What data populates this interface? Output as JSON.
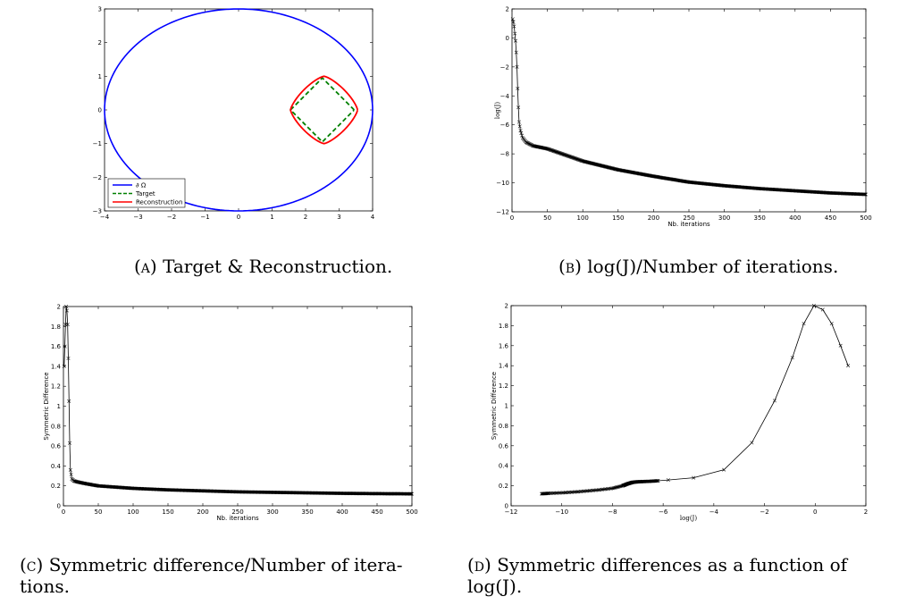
{
  "captions": {
    "a": {
      "letter": "(a)",
      "text": "Target & Reconstruction."
    },
    "b": {
      "letter": "(b)",
      "text": "log(J)/Number of iterations."
    },
    "c": {
      "letter": "(c)",
      "text": "Symmetric difference/Number of itera-",
      "text2": "tions."
    },
    "d": {
      "letter": "(d)",
      "text": "Symmetric differences as a function of",
      "text2": "log(J)."
    }
  },
  "chart_data": [
    {
      "id": "a",
      "type": "line",
      "title": "",
      "xlim": [
        -4,
        4
      ],
      "ylim": [
        -3,
        3
      ],
      "xticks": [
        -4,
        -3,
        -2,
        -1,
        0,
        1,
        2,
        3,
        4
      ],
      "yticks": [
        -3,
        -2,
        -1,
        0,
        1,
        2,
        3
      ],
      "xlabel": "",
      "ylabel": "",
      "legend": {
        "placement": "bottom-left",
        "entries": [
          "∂ Ω",
          "Target",
          "Reconstruction"
        ]
      },
      "series": [
        {
          "name": "∂ Ω",
          "color": "#0000ff",
          "style": "solid",
          "shape": "ellipse",
          "center": [
            0,
            0
          ],
          "rx": 4,
          "ry": 3
        },
        {
          "name": "Target",
          "color": "#008000",
          "style": "dashed",
          "shape": "square-rotated",
          "center": [
            2.5,
            0
          ],
          "radius": 0.95
        },
        {
          "name": "Reconstruction",
          "color": "#ff0000",
          "style": "solid",
          "shape": "rounded-diamond",
          "center": [
            2.55,
            0
          ],
          "radius": 1.0
        }
      ]
    },
    {
      "id": "b",
      "type": "line",
      "title": "",
      "xlabel": "Nb. iterations",
      "ylabel": "log(J)",
      "xlim": [
        0,
        500
      ],
      "ylim": [
        -12,
        2
      ],
      "xticks": [
        0,
        50,
        100,
        150,
        200,
        250,
        300,
        350,
        400,
        450,
        500
      ],
      "yticks": [
        -12,
        -10,
        -8,
        -6,
        -4,
        -2,
        0,
        2
      ],
      "marker": "x",
      "series": [
        {
          "name": "",
          "x": [
            1,
            2,
            3,
            4,
            5,
            6,
            7,
            8,
            9,
            10,
            12,
            15,
            20,
            30,
            40,
            50,
            100,
            150,
            200,
            250,
            300,
            350,
            400,
            450,
            500
          ],
          "y": [
            1.3,
            1.1,
            0.8,
            0.3,
            -0.2,
            -1.0,
            -2.0,
            -3.5,
            -4.8,
            -5.8,
            -6.4,
            -6.9,
            -7.2,
            -7.45,
            -7.55,
            -7.65,
            -8.5,
            -9.1,
            -9.55,
            -9.95,
            -10.2,
            -10.4,
            -10.55,
            -10.7,
            -10.8
          ]
        }
      ]
    },
    {
      "id": "c",
      "type": "line",
      "title": "",
      "xlabel": "Nb. iterations",
      "ylabel": "Symmetric Difference",
      "xlim": [
        0,
        500
      ],
      "ylim": [
        0,
        2
      ],
      "xticks": [
        0,
        50,
        100,
        150,
        200,
        250,
        300,
        350,
        400,
        450,
        500
      ],
      "yticks": [
        0,
        0.2,
        0.4,
        0.6,
        0.8,
        1,
        1.2,
        1.4,
        1.6,
        1.8,
        2
      ],
      "marker": "x",
      "series": [
        {
          "name": "",
          "x": [
            1,
            2,
            3,
            4,
            5,
            6,
            7,
            8,
            9,
            10,
            12,
            15,
            20,
            30,
            50,
            100,
            150,
            200,
            250,
            300,
            350,
            400,
            450,
            500
          ],
          "y": [
            1.4,
            1.6,
            1.82,
            2.0,
            1.96,
            1.82,
            1.48,
            1.05,
            0.63,
            0.36,
            0.27,
            0.25,
            0.24,
            0.225,
            0.2,
            0.175,
            0.16,
            0.15,
            0.14,
            0.135,
            0.13,
            0.125,
            0.122,
            0.12
          ]
        }
      ]
    },
    {
      "id": "d",
      "type": "line",
      "title": "",
      "xlabel": "log(J)",
      "ylabel": "Symmetric Difference",
      "xlim": [
        -12,
        2
      ],
      "ylim": [
        0,
        2
      ],
      "xticks": [
        -12,
        -10,
        -8,
        -6,
        -4,
        -2,
        0,
        2
      ],
      "yticks": [
        0,
        0.2,
        0.4,
        0.6,
        0.8,
        1,
        1.2,
        1.4,
        1.6,
        1.8,
        2
      ],
      "marker": "x",
      "series": [
        {
          "name": "",
          "x": [
            -10.8,
            -10.5,
            -10.0,
            -9.5,
            -9.0,
            -8.5,
            -8.0,
            -7.6,
            -7.4,
            -7.2,
            -7.0,
            -6.8,
            -6.5,
            -6.2,
            -5.8,
            -4.8,
            -3.6,
            -2.5,
            -1.6,
            -0.9,
            -0.45,
            -0.05,
            0.3,
            0.65,
            1.0,
            1.3
          ],
          "y": [
            0.12,
            0.125,
            0.13,
            0.138,
            0.148,
            0.16,
            0.175,
            0.2,
            0.22,
            0.235,
            0.24,
            0.242,
            0.245,
            0.25,
            0.258,
            0.28,
            0.36,
            0.63,
            1.05,
            1.48,
            1.82,
            2.0,
            1.96,
            1.82,
            1.6,
            1.4
          ]
        }
      ]
    }
  ]
}
